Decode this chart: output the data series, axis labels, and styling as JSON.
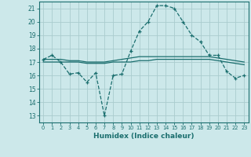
{
  "title": "",
  "xlabel": "Humidex (Indice chaleur)",
  "ylabel": "",
  "xlim": [
    -0.5,
    23.5
  ],
  "ylim": [
    12.5,
    21.5
  ],
  "yticks": [
    13,
    14,
    15,
    16,
    17,
    18,
    19,
    20,
    21
  ],
  "xticks": [
    0,
    1,
    2,
    3,
    4,
    5,
    6,
    7,
    8,
    9,
    10,
    11,
    12,
    13,
    14,
    15,
    16,
    17,
    18,
    19,
    20,
    21,
    22,
    23
  ],
  "bg_color": "#cce8ea",
  "grid_color": "#aaccce",
  "line_color": "#1a6e6e",
  "curve1_x": [
    0,
    1,
    2,
    3,
    4,
    5,
    6,
    7,
    8,
    9,
    10,
    11,
    12,
    13,
    14,
    15,
    16,
    17,
    18,
    19,
    20,
    21,
    22,
    23
  ],
  "curve1_y": [
    17.2,
    17.5,
    17.0,
    16.1,
    16.2,
    15.5,
    16.2,
    13.0,
    16.0,
    16.1,
    17.8,
    19.3,
    20.0,
    21.2,
    21.2,
    21.0,
    20.0,
    19.0,
    18.5,
    17.5,
    17.5,
    16.3,
    15.8,
    16.0
  ],
  "curve2_x": [
    0,
    1,
    2,
    3,
    4,
    5,
    6,
    7,
    8,
    9,
    10,
    11,
    12,
    13,
    14,
    15,
    16,
    17,
    18,
    19,
    20,
    21,
    22,
    23
  ],
  "curve2_y": [
    17.2,
    17.2,
    17.2,
    17.1,
    17.1,
    17.0,
    17.0,
    17.0,
    17.1,
    17.2,
    17.3,
    17.4,
    17.4,
    17.4,
    17.4,
    17.4,
    17.4,
    17.4,
    17.4,
    17.4,
    17.3,
    17.2,
    17.1,
    17.0
  ],
  "curve3_x": [
    0,
    1,
    2,
    3,
    4,
    5,
    6,
    7,
    8,
    9,
    10,
    11,
    12,
    13,
    14,
    15,
    16,
    17,
    18,
    19,
    20,
    21,
    22,
    23
  ],
  "curve3_y": [
    17.0,
    17.0,
    17.0,
    17.0,
    17.0,
    16.9,
    16.9,
    16.9,
    17.0,
    17.0,
    17.0,
    17.1,
    17.1,
    17.2,
    17.2,
    17.2,
    17.2,
    17.2,
    17.2,
    17.2,
    17.1,
    17.0,
    16.9,
    16.8
  ]
}
